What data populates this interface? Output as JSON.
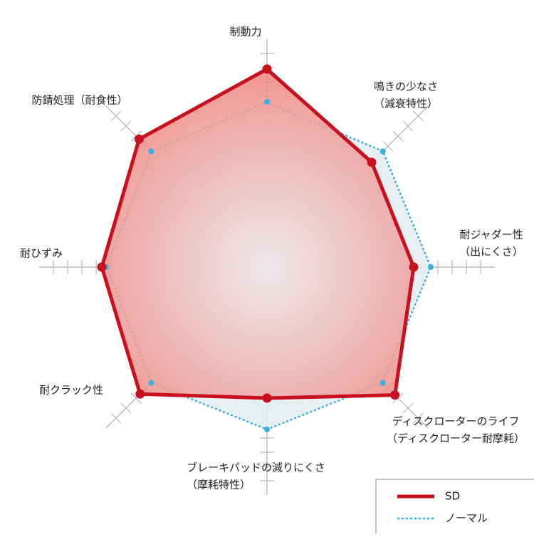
{
  "chart_data": {
    "type": "radar",
    "categories": [
      [
        "制動力"
      ],
      [
        "鳴きの少なさ",
        "（減衰特性）"
      ],
      [
        "耐ジャダー性",
        "（出にくさ）"
      ],
      [
        "ディスクローターのライフ",
        "（ディスクローター耐摩耗）"
      ],
      [
        "ブレーキパッドの減りにくさ",
        "（摩耗特性）"
      ],
      [
        "耐クラック性"
      ],
      [
        "耐ひずみ"
      ],
      [
        "防錆処理（耐食性）"
      ]
    ],
    "rlim": [
      0,
      16
    ],
    "rticks": [
      1,
      2,
      3,
      4,
      5,
      6,
      7,
      8,
      9,
      10,
      11,
      12,
      13,
      14,
      15
    ],
    "series": [
      {
        "name": "ノーマル",
        "color": "#3aaee0",
        "values": [
          11.6,
          11.5,
          11.5,
          11.5,
          11.4,
          11.5,
          11.3,
          11.5
        ]
      },
      {
        "name": "SD",
        "color": "#c8101e",
        "values": [
          13.9,
          10.4,
          10.3,
          12.7,
          9.2,
          12.6,
          11.6,
          12.7
        ]
      }
    ],
    "legend": "bottom-right"
  }
}
